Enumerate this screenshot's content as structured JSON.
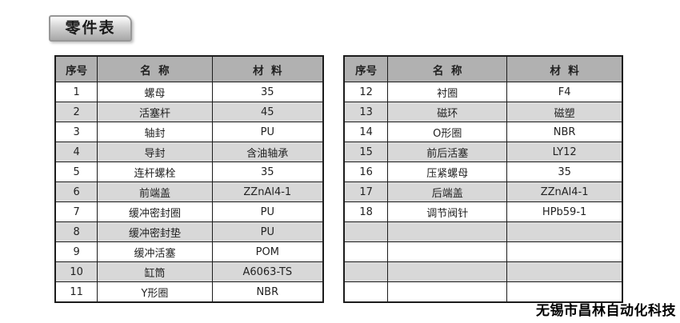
{
  "title_badge": {
    "label": "零件表"
  },
  "footer": {
    "company": "无锡市昌林自动化科技"
  },
  "colors": {
    "header_bg": "#b1b1b1",
    "alt_row_bg": "#d8d8d8",
    "row_bg": "#ffffff",
    "border": "#1c1c1c",
    "badge_text": "#1a1a1a"
  },
  "tables": [
    {
      "headers": [
        "序号",
        "名  称",
        "材  料"
      ],
      "rows": [
        [
          "1",
          "螺母",
          "35"
        ],
        [
          "2",
          "活塞杆",
          "45"
        ],
        [
          "3",
          "轴封",
          "PU"
        ],
        [
          "4",
          "导封",
          "含油轴承"
        ],
        [
          "5",
          "连杆螺栓",
          "35"
        ],
        [
          "6",
          "前端盖",
          "ZZnAl4-1"
        ],
        [
          "7",
          "缓冲密封圈",
          "PU"
        ],
        [
          "8",
          "缓冲密封垫",
          "PU"
        ],
        [
          "9",
          "缓冲活塞",
          "POM"
        ],
        [
          "10",
          "缸筒",
          "A6063-TS"
        ],
        [
          "11",
          "Y形圈",
          "NBR"
        ]
      ]
    },
    {
      "headers": [
        "序号",
        "名  称",
        "材  料"
      ],
      "rows": [
        [
          "12",
          "衬圈",
          "F4"
        ],
        [
          "13",
          "磁环",
          "磁塑"
        ],
        [
          "14",
          "O形圈",
          "NBR"
        ],
        [
          "15",
          "前后活塞",
          "LY12"
        ],
        [
          "16",
          "压紧螺母",
          "35"
        ],
        [
          "17",
          "后端盖",
          "ZZnAl4-1"
        ],
        [
          "18",
          "调节阀针",
          "HPb59-1"
        ],
        [
          "",
          "",
          ""
        ],
        [
          "",
          "",
          ""
        ],
        [
          "",
          "",
          ""
        ],
        [
          "",
          "",
          ""
        ]
      ]
    }
  ]
}
